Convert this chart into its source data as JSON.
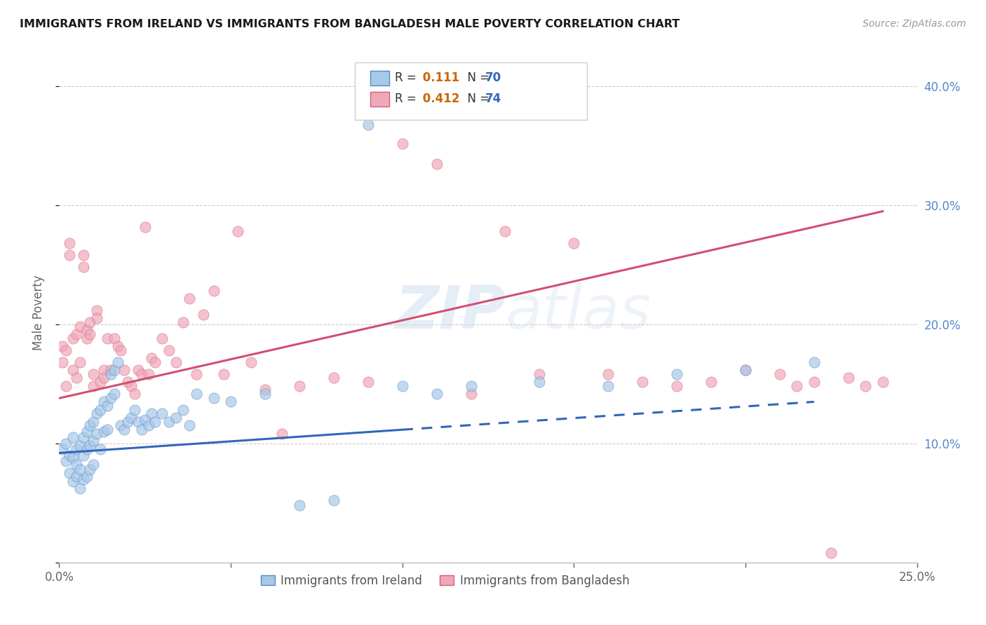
{
  "title": "IMMIGRANTS FROM IRELAND VS IMMIGRANTS FROM BANGLADESH MALE POVERTY CORRELATION CHART",
  "source": "Source: ZipAtlas.com",
  "ylabel": "Male Poverty",
  "xlim": [
    0.0,
    0.25
  ],
  "ylim": [
    0.0,
    0.42
  ],
  "xticks": [
    0.0,
    0.05,
    0.1,
    0.15,
    0.2,
    0.25
  ],
  "xticklabels": [
    "0.0%",
    "",
    "",
    "",
    "",
    "25.0%"
  ],
  "yticks": [
    0.0,
    0.1,
    0.2,
    0.3,
    0.4
  ],
  "yticklabels": [
    "",
    "10.0%",
    "20.0%",
    "30.0%",
    "40.0%"
  ],
  "ireland_color": "#a8c8e8",
  "ireland_edge": "#5588cc",
  "bangladesh_color": "#f0a8b8",
  "bangladesh_edge": "#d06080",
  "ireland_line_color": "#3366bb",
  "bangladesh_line_color": "#d05070",
  "watermark": "ZIPatlas",
  "ireland_R": 0.111,
  "ireland_N": 70,
  "bangladesh_R": 0.412,
  "bangladesh_N": 74,
  "legend_R_color": "#cc6600",
  "legend_N_color": "#3366bb",
  "ireland_scatter_x": [
    0.001,
    0.002,
    0.002,
    0.003,
    0.003,
    0.004,
    0.004,
    0.004,
    0.005,
    0.005,
    0.005,
    0.006,
    0.006,
    0.006,
    0.007,
    0.007,
    0.007,
    0.008,
    0.008,
    0.008,
    0.009,
    0.009,
    0.009,
    0.01,
    0.01,
    0.01,
    0.011,
    0.011,
    0.012,
    0.012,
    0.013,
    0.013,
    0.014,
    0.014,
    0.015,
    0.015,
    0.016,
    0.016,
    0.017,
    0.018,
    0.019,
    0.02,
    0.021,
    0.022,
    0.023,
    0.024,
    0.025,
    0.026,
    0.027,
    0.028,
    0.03,
    0.032,
    0.034,
    0.036,
    0.038,
    0.04,
    0.045,
    0.05,
    0.06,
    0.07,
    0.08,
    0.09,
    0.1,
    0.11,
    0.12,
    0.14,
    0.16,
    0.18,
    0.2,
    0.22
  ],
  "ireland_scatter_y": [
    0.095,
    0.1,
    0.085,
    0.09,
    0.075,
    0.105,
    0.088,
    0.068,
    0.095,
    0.082,
    0.072,
    0.098,
    0.078,
    0.062,
    0.105,
    0.09,
    0.07,
    0.11,
    0.095,
    0.072,
    0.115,
    0.098,
    0.078,
    0.118,
    0.102,
    0.082,
    0.125,
    0.108,
    0.128,
    0.095,
    0.135,
    0.11,
    0.132,
    0.112,
    0.158,
    0.138,
    0.162,
    0.142,
    0.168,
    0.115,
    0.112,
    0.118,
    0.122,
    0.128,
    0.118,
    0.112,
    0.12,
    0.115,
    0.125,
    0.118,
    0.125,
    0.118,
    0.122,
    0.128,
    0.115,
    0.142,
    0.138,
    0.135,
    0.142,
    0.048,
    0.052,
    0.368,
    0.148,
    0.142,
    0.148,
    0.152,
    0.148,
    0.158,
    0.162,
    0.168
  ],
  "bangladesh_scatter_x": [
    0.001,
    0.001,
    0.002,
    0.002,
    0.003,
    0.003,
    0.004,
    0.004,
    0.005,
    0.005,
    0.006,
    0.006,
    0.007,
    0.007,
    0.008,
    0.008,
    0.009,
    0.009,
    0.01,
    0.01,
    0.011,
    0.011,
    0.012,
    0.013,
    0.013,
    0.014,
    0.015,
    0.016,
    0.017,
    0.018,
    0.019,
    0.02,
    0.021,
    0.022,
    0.023,
    0.024,
    0.025,
    0.026,
    0.027,
    0.028,
    0.03,
    0.032,
    0.034,
    0.036,
    0.038,
    0.04,
    0.042,
    0.045,
    0.048,
    0.052,
    0.056,
    0.06,
    0.065,
    0.07,
    0.08,
    0.09,
    0.1,
    0.11,
    0.12,
    0.13,
    0.14,
    0.15,
    0.16,
    0.17,
    0.18,
    0.19,
    0.2,
    0.21,
    0.215,
    0.22,
    0.225,
    0.23,
    0.235,
    0.24
  ],
  "bangladesh_scatter_y": [
    0.182,
    0.168,
    0.178,
    0.148,
    0.268,
    0.258,
    0.188,
    0.162,
    0.192,
    0.155,
    0.198,
    0.168,
    0.258,
    0.248,
    0.195,
    0.188,
    0.202,
    0.192,
    0.158,
    0.148,
    0.212,
    0.205,
    0.152,
    0.162,
    0.155,
    0.188,
    0.162,
    0.188,
    0.182,
    0.178,
    0.162,
    0.152,
    0.148,
    0.142,
    0.162,
    0.158,
    0.282,
    0.158,
    0.172,
    0.168,
    0.188,
    0.178,
    0.168,
    0.202,
    0.222,
    0.158,
    0.208,
    0.228,
    0.158,
    0.278,
    0.168,
    0.145,
    0.108,
    0.148,
    0.155,
    0.152,
    0.352,
    0.335,
    0.142,
    0.278,
    0.158,
    0.268,
    0.158,
    0.152,
    0.148,
    0.152,
    0.162,
    0.158,
    0.148,
    0.152,
    0.008,
    0.155,
    0.148,
    0.152
  ]
}
